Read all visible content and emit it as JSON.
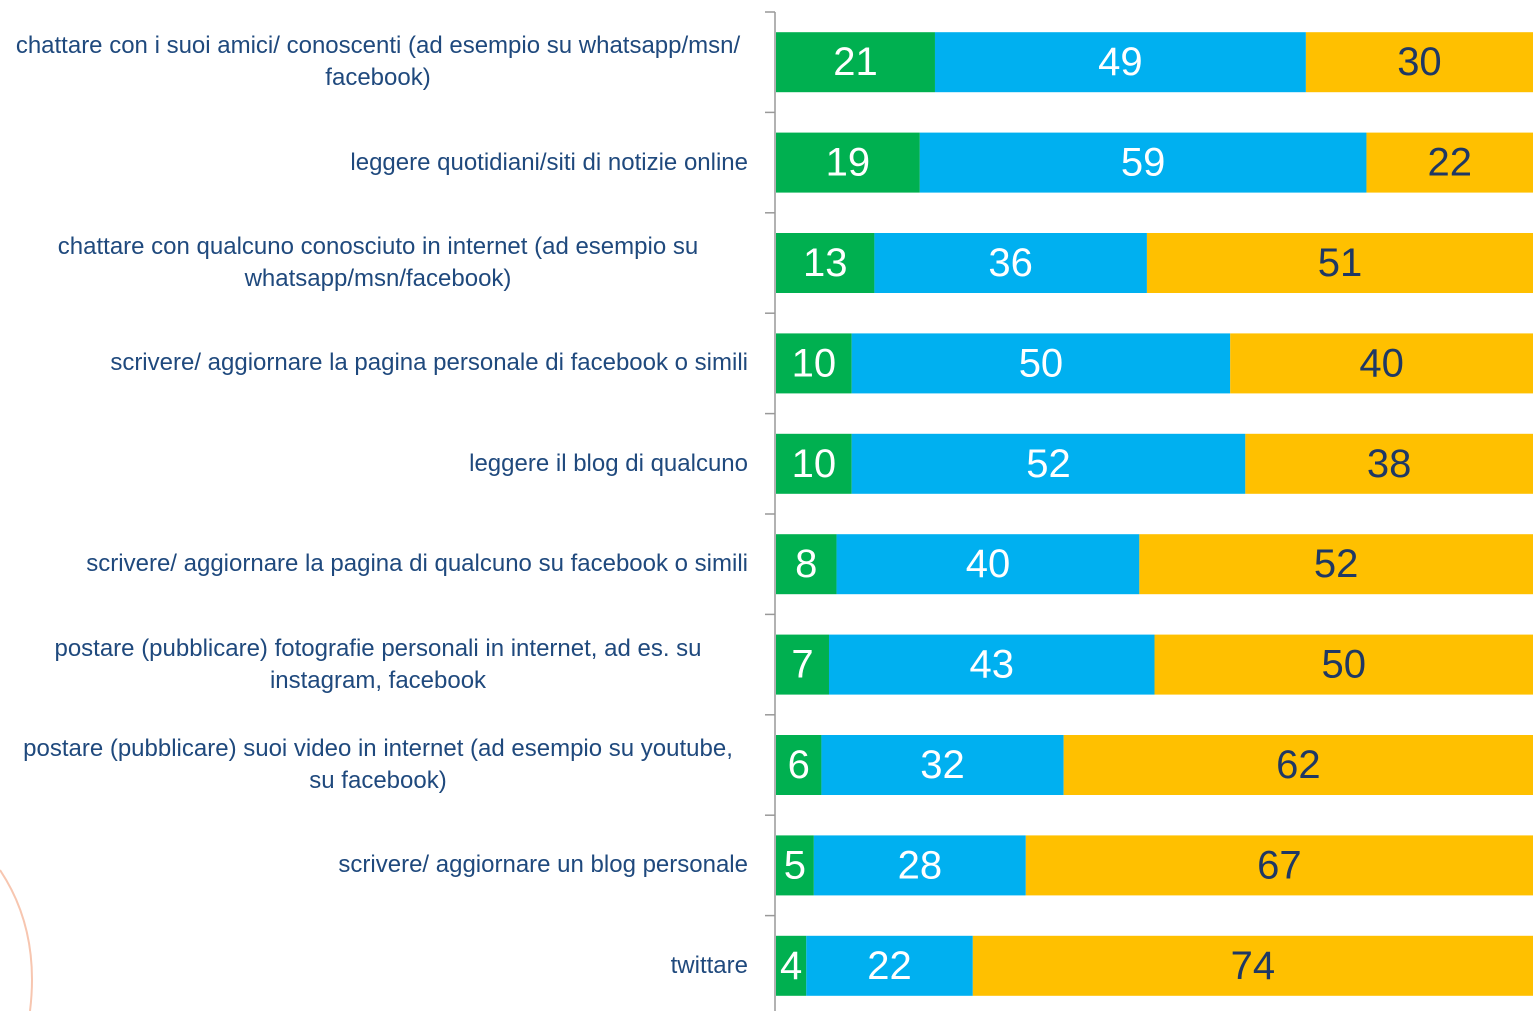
{
  "chart_data": {
    "type": "stacked_bar_horizontal",
    "categories": [
      "chattare con i suoi amici/ conoscenti (ad esempio su whatsapp/msn/ facebook)",
      "leggere quotidiani/siti di notizie online",
      "chattare con qualcuno conosciuto in internet (ad esempio su whatsapp/msn/facebook)",
      "scrivere/ aggiornare la pagina personale di facebook o simili",
      "leggere il blog di qualcuno",
      "scrivere/ aggiornare la pagina di qualcuno su facebook o simili",
      "postare (pubblicare) fotografie personali in internet, ad es. su instagram, facebook",
      "postare (pubblicare) suoi video in internet (ad esempio su youtube, su facebook)",
      "scrivere/ aggiornare un blog personale",
      "twittare"
    ],
    "series": [
      {
        "color": "#00b050",
        "values": [
          21,
          19,
          13,
          10,
          10,
          8,
          7,
          6,
          5,
          4
        ]
      },
      {
        "color": "#00b0f0",
        "values": [
          49,
          59,
          36,
          50,
          52,
          40,
          43,
          32,
          28,
          22
        ]
      },
      {
        "color": "#ffc000",
        "values": [
          30,
          22,
          51,
          40,
          38,
          52,
          50,
          62,
          67,
          74
        ]
      }
    ],
    "xlim": [
      0,
      100
    ]
  }
}
